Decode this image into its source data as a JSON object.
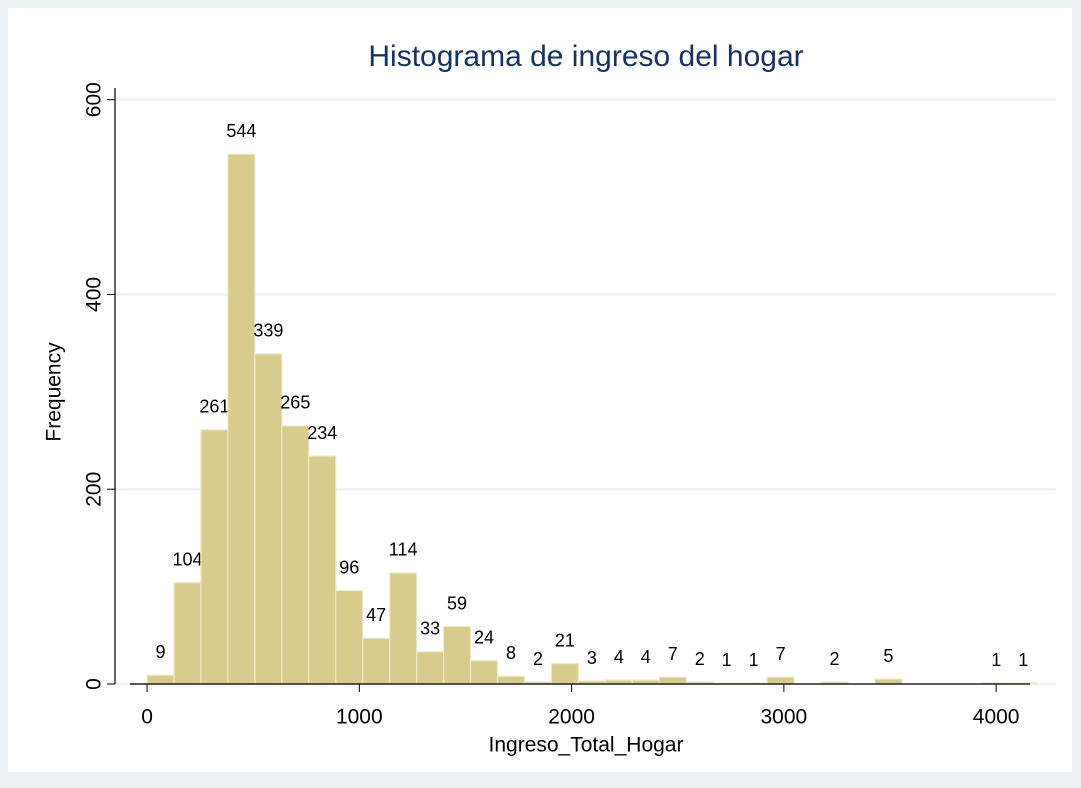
{
  "chart_data": {
    "type": "histogram",
    "title": "Histograma de ingreso del hogar",
    "x_label": "Ingreso_Total_Hogar",
    "y_label": "Frequency",
    "bins": [
      0,
      127,
      254,
      381,
      508,
      635,
      762,
      889,
      1016,
      1143,
      1270,
      1397,
      1524,
      1651,
      1778,
      1905,
      2032,
      2159,
      2286,
      2413,
      2540,
      2667,
      2794,
      2921,
      3048,
      3175,
      3302,
      3429,
      3556,
      3683,
      3810,
      3937,
      4064,
      4191
    ],
    "values": [
      9,
      104,
      261,
      544,
      339,
      265,
      234,
      96,
      47,
      114,
      33,
      59,
      24,
      8,
      2,
      21,
      3,
      4,
      4,
      7,
      2,
      1,
      1,
      7,
      0,
      2,
      0,
      5,
      0,
      0,
      0,
      1,
      1
    ],
    "color": "#d7cc8e",
    "xlim": [
      -151,
      4282
    ],
    "ylim": [
      0,
      612
    ],
    "xticks": [
      0,
      1000,
      2000,
      3000,
      4000
    ],
    "yticks": [
      0,
      200,
      400,
      600
    ],
    "grid": true
  }
}
